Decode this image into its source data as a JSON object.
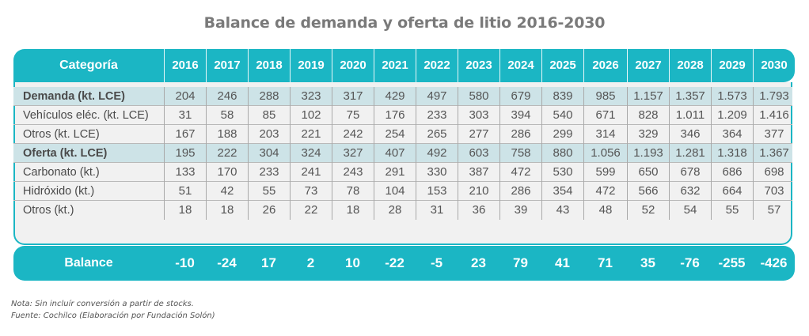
{
  "title": "Balance de demanda y oferta de litio 2016-2030",
  "table": {
    "category_header": "Categoría",
    "years": [
      "2016",
      "2017",
      "2018",
      "2019",
      "2020",
      "2021",
      "2022",
      "2023",
      "2024",
      "2025",
      "2026",
      "2027",
      "2028",
      "2029",
      "2030"
    ],
    "rows": [
      {
        "label": "Demanda (kt. LCE)",
        "highlight": true,
        "values": [
          "204",
          "246",
          "288",
          "323",
          "317",
          "429",
          "497",
          "580",
          "679",
          "839",
          "985",
          "1.157",
          "1.357",
          "1.573",
          "1.793"
        ]
      },
      {
        "label": "Vehículos eléc. (kt. LCE)",
        "highlight": false,
        "values": [
          "31",
          "58",
          "85",
          "102",
          "75",
          "176",
          "233",
          "303",
          "394",
          "540",
          "671",
          "828",
          "1.011",
          "1.209",
          "1.416"
        ]
      },
      {
        "label": "Otros (kt. LCE)",
        "highlight": false,
        "values": [
          "167",
          "188",
          "203",
          "221",
          "242",
          "254",
          "265",
          "277",
          "286",
          "299",
          "314",
          "329",
          "346",
          "364",
          "377"
        ]
      },
      {
        "label": "Oferta (kt. LCE)",
        "highlight": true,
        "values": [
          "195",
          "222",
          "304",
          "324",
          "327",
          "407",
          "492",
          "603",
          "758",
          "880",
          "1.056",
          "1.193",
          "1.281",
          "1.318",
          "1.367"
        ]
      },
      {
        "label": "Carbonato (kt.)",
        "highlight": false,
        "values": [
          "133",
          "170",
          "233",
          "241",
          "243",
          "291",
          "330",
          "387",
          "472",
          "530",
          "599",
          "650",
          "678",
          "686",
          "698"
        ]
      },
      {
        "label": "Hidróxido (kt.)",
        "highlight": false,
        "values": [
          "51",
          "42",
          "55",
          "73",
          "78",
          "104",
          "153",
          "210",
          "286",
          "354",
          "472",
          "566",
          "632",
          "664",
          "703"
        ]
      },
      {
        "label": "Otros (kt.)",
        "highlight": false,
        "values": [
          "18",
          "18",
          "26",
          "22",
          "18",
          "28",
          "31",
          "36",
          "39",
          "43",
          "48",
          "52",
          "54",
          "55",
          "57"
        ]
      }
    ],
    "balance": {
      "label": "Balance",
      "values": [
        "-10",
        "-24",
        "17",
        "2",
        "10",
        "-22",
        "-5",
        "23",
        "79",
        "41",
        "71",
        "35",
        "-76",
        "-255",
        "-426"
      ]
    }
  },
  "notes": {
    "note": "Nota: Sin incluír conversión a partir de stocks.",
    "source": "Fuente: Cochilco (Elaboración por Fundación Solón)"
  },
  "colors": {
    "accent": "#1bb6c4",
    "highlight_row": "#cde3e7",
    "body_bg": "#f1f1f1"
  }
}
